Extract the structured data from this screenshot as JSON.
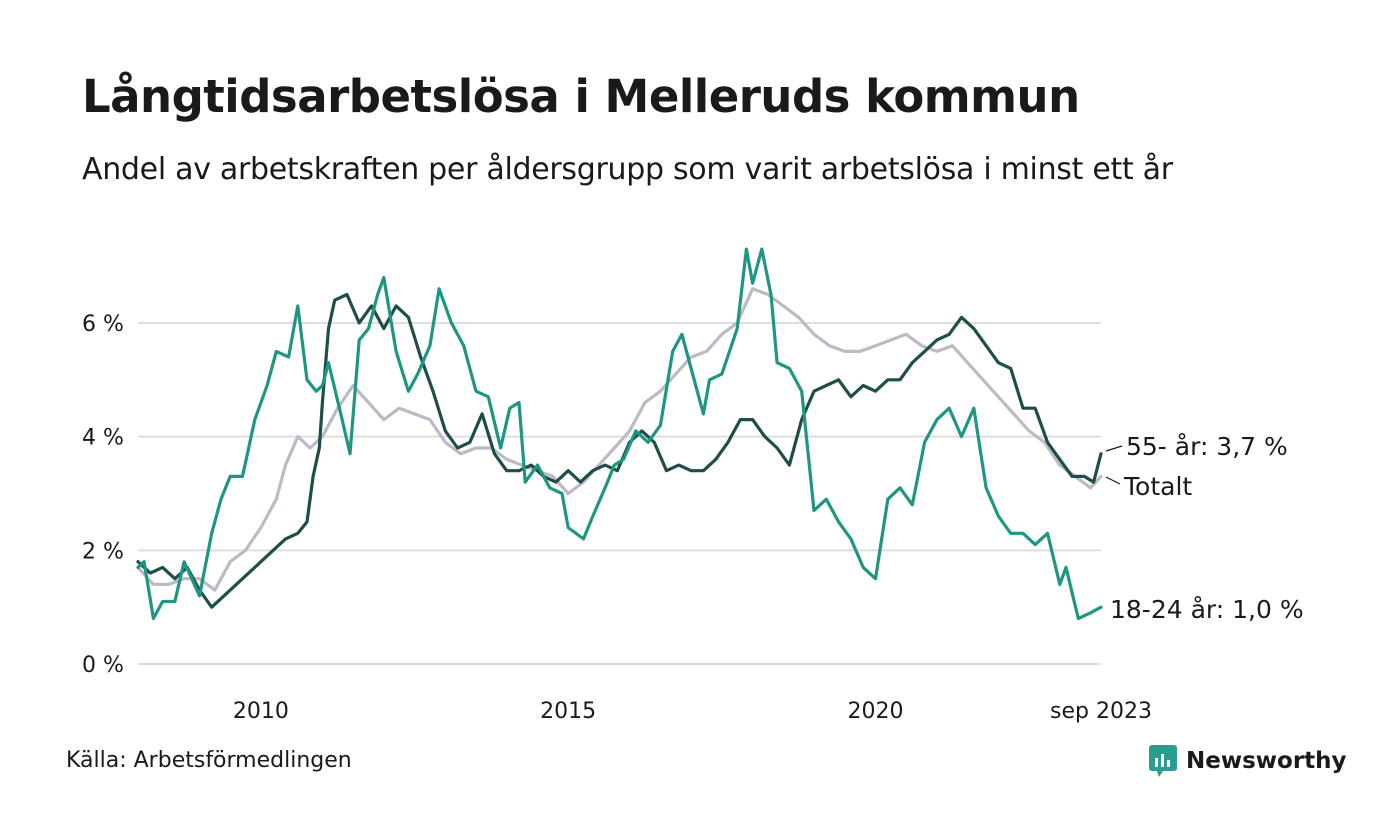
{
  "header": {
    "title": "Långtidsarbetslösa i Melleruds kommun",
    "subtitle": "Andel av arbetskraften per åldersgrupp som varit arbetslösa i minst ett år"
  },
  "footer": {
    "source": "Källa: Arbetsförmedlingen",
    "brand": "Newsworthy",
    "brand_color": "#2a9d8f"
  },
  "chart_data": {
    "type": "line",
    "title": "Långtidsarbetslösa i Melleruds kommun",
    "xlabel": "",
    "ylabel": "",
    "xlim": [
      2008.0,
      2023.67
    ],
    "ylim": [
      0,
      7.6
    ],
    "y_ticks": [
      0,
      2,
      4,
      6
    ],
    "y_tick_labels": [
      "0 %",
      "2 %",
      "4 %",
      "6 %"
    ],
    "x_ticks": [
      2010,
      2015,
      2020,
      2023.67
    ],
    "x_tick_labels": [
      "2010",
      "2015",
      "2020",
      "sep 2023"
    ],
    "grid": true,
    "series": [
      {
        "name": "Totalt",
        "label": "Totalt",
        "color": "#bdb9c6",
        "points": [
          [
            2008.0,
            1.7
          ],
          [
            2008.25,
            1.4
          ],
          [
            2008.5,
            1.4
          ],
          [
            2008.75,
            1.5
          ],
          [
            2009.0,
            1.5
          ],
          [
            2009.25,
            1.3
          ],
          [
            2009.5,
            1.8
          ],
          [
            2009.75,
            2.0
          ],
          [
            2010.0,
            2.4
          ],
          [
            2010.25,
            2.9
          ],
          [
            2010.4,
            3.5
          ],
          [
            2010.6,
            4.0
          ],
          [
            2010.8,
            3.8
          ],
          [
            2011.0,
            4.0
          ],
          [
            2011.25,
            4.5
          ],
          [
            2011.5,
            4.9
          ],
          [
            2011.75,
            4.6
          ],
          [
            2012.0,
            4.3
          ],
          [
            2012.25,
            4.5
          ],
          [
            2012.5,
            4.4
          ],
          [
            2012.75,
            4.3
          ],
          [
            2013.0,
            3.9
          ],
          [
            2013.25,
            3.7
          ],
          [
            2013.5,
            3.8
          ],
          [
            2013.75,
            3.8
          ],
          [
            2014.0,
            3.6
          ],
          [
            2014.25,
            3.5
          ],
          [
            2014.5,
            3.4
          ],
          [
            2014.75,
            3.3
          ],
          [
            2015.0,
            3.0
          ],
          [
            2015.25,
            3.2
          ],
          [
            2015.5,
            3.5
          ],
          [
            2015.75,
            3.8
          ],
          [
            2016.0,
            4.1
          ],
          [
            2016.25,
            4.6
          ],
          [
            2016.5,
            4.8
          ],
          [
            2016.75,
            5.1
          ],
          [
            2017.0,
            5.4
          ],
          [
            2017.25,
            5.5
          ],
          [
            2017.5,
            5.8
          ],
          [
            2017.75,
            6.0
          ],
          [
            2018.0,
            6.6
          ],
          [
            2018.25,
            6.5
          ],
          [
            2018.5,
            6.3
          ],
          [
            2018.75,
            6.1
          ],
          [
            2019.0,
            5.8
          ],
          [
            2019.25,
            5.6
          ],
          [
            2019.5,
            5.5
          ],
          [
            2019.75,
            5.5
          ],
          [
            2020.0,
            5.6
          ],
          [
            2020.25,
            5.7
          ],
          [
            2020.5,
            5.8
          ],
          [
            2020.75,
            5.6
          ],
          [
            2021.0,
            5.5
          ],
          [
            2021.25,
            5.6
          ],
          [
            2021.5,
            5.3
          ],
          [
            2021.75,
            5.0
          ],
          [
            2022.0,
            4.7
          ],
          [
            2022.25,
            4.4
          ],
          [
            2022.5,
            4.1
          ],
          [
            2022.75,
            3.9
          ],
          [
            2023.0,
            3.5
          ],
          [
            2023.25,
            3.3
          ],
          [
            2023.5,
            3.1
          ],
          [
            2023.67,
            3.3
          ]
        ]
      },
      {
        "name": "55- år",
        "label": "55- år: 3,7 %",
        "color": "#1f4d48",
        "points": [
          [
            2008.0,
            1.8
          ],
          [
            2008.2,
            1.6
          ],
          [
            2008.4,
            1.7
          ],
          [
            2008.6,
            1.5
          ],
          [
            2008.8,
            1.7
          ],
          [
            2009.0,
            1.3
          ],
          [
            2009.2,
            1.0
          ],
          [
            2009.4,
            1.2
          ],
          [
            2009.6,
            1.4
          ],
          [
            2009.8,
            1.6
          ],
          [
            2010.0,
            1.8
          ],
          [
            2010.2,
            2.0
          ],
          [
            2010.4,
            2.2
          ],
          [
            2010.6,
            2.3
          ],
          [
            2010.75,
            2.5
          ],
          [
            2010.85,
            3.3
          ],
          [
            2010.95,
            3.8
          ],
          [
            2011.0,
            4.6
          ],
          [
            2011.1,
            5.9
          ],
          [
            2011.2,
            6.4
          ],
          [
            2011.4,
            6.5
          ],
          [
            2011.6,
            6.0
          ],
          [
            2011.8,
            6.3
          ],
          [
            2012.0,
            5.9
          ],
          [
            2012.2,
            6.3
          ],
          [
            2012.4,
            6.1
          ],
          [
            2012.6,
            5.4
          ],
          [
            2012.8,
            4.8
          ],
          [
            2013.0,
            4.1
          ],
          [
            2013.2,
            3.8
          ],
          [
            2013.4,
            3.9
          ],
          [
            2013.6,
            4.4
          ],
          [
            2013.8,
            3.7
          ],
          [
            2014.0,
            3.4
          ],
          [
            2014.2,
            3.4
          ],
          [
            2014.4,
            3.5
          ],
          [
            2014.6,
            3.3
          ],
          [
            2014.8,
            3.2
          ],
          [
            2015.0,
            3.4
          ],
          [
            2015.2,
            3.2
          ],
          [
            2015.4,
            3.4
          ],
          [
            2015.6,
            3.5
          ],
          [
            2015.8,
            3.4
          ],
          [
            2016.0,
            3.9
          ],
          [
            2016.2,
            4.1
          ],
          [
            2016.4,
            3.9
          ],
          [
            2016.6,
            3.4
          ],
          [
            2016.8,
            3.5
          ],
          [
            2017.0,
            3.4
          ],
          [
            2017.2,
            3.4
          ],
          [
            2017.4,
            3.6
          ],
          [
            2017.6,
            3.9
          ],
          [
            2017.8,
            4.3
          ],
          [
            2018.0,
            4.3
          ],
          [
            2018.2,
            4.0
          ],
          [
            2018.4,
            3.8
          ],
          [
            2018.6,
            3.5
          ],
          [
            2018.8,
            4.3
          ],
          [
            2019.0,
            4.8
          ],
          [
            2019.2,
            4.9
          ],
          [
            2019.4,
            5.0
          ],
          [
            2019.6,
            4.7
          ],
          [
            2019.8,
            4.9
          ],
          [
            2020.0,
            4.8
          ],
          [
            2020.2,
            5.0
          ],
          [
            2020.4,
            5.0
          ],
          [
            2020.6,
            5.3
          ],
          [
            2020.8,
            5.5
          ],
          [
            2021.0,
            5.7
          ],
          [
            2021.2,
            5.8
          ],
          [
            2021.4,
            6.1
          ],
          [
            2021.6,
            5.9
          ],
          [
            2021.8,
            5.6
          ],
          [
            2022.0,
            5.3
          ],
          [
            2022.2,
            5.2
          ],
          [
            2022.4,
            4.5
          ],
          [
            2022.6,
            4.5
          ],
          [
            2022.8,
            3.9
          ],
          [
            2023.0,
            3.6
          ],
          [
            2023.2,
            3.3
          ],
          [
            2023.4,
            3.3
          ],
          [
            2023.55,
            3.2
          ],
          [
            2023.67,
            3.7
          ]
        ]
      },
      {
        "name": "18-24 år",
        "label": "18-24 år: 1,0 %",
        "color": "#1f9582",
        "points": [
          [
            2008.0,
            1.7
          ],
          [
            2008.1,
            1.8
          ],
          [
            2008.25,
            0.8
          ],
          [
            2008.4,
            1.1
          ],
          [
            2008.6,
            1.1
          ],
          [
            2008.75,
            1.8
          ],
          [
            2009.0,
            1.2
          ],
          [
            2009.2,
            2.3
          ],
          [
            2009.35,
            2.9
          ],
          [
            2009.5,
            3.3
          ],
          [
            2009.7,
            3.3
          ],
          [
            2009.9,
            4.3
          ],
          [
            2010.1,
            4.9
          ],
          [
            2010.25,
            5.5
          ],
          [
            2010.45,
            5.4
          ],
          [
            2010.6,
            6.3
          ],
          [
            2010.75,
            5.0
          ],
          [
            2010.9,
            4.8
          ],
          [
            2011.0,
            4.9
          ],
          [
            2011.1,
            5.3
          ],
          [
            2011.3,
            4.4
          ],
          [
            2011.45,
            3.7
          ],
          [
            2011.6,
            5.7
          ],
          [
            2011.75,
            5.9
          ],
          [
            2011.9,
            6.5
          ],
          [
            2012.0,
            6.8
          ],
          [
            2012.2,
            5.5
          ],
          [
            2012.4,
            4.8
          ],
          [
            2012.55,
            5.1
          ],
          [
            2012.75,
            5.6
          ],
          [
            2012.9,
            6.6
          ],
          [
            2013.1,
            6.0
          ],
          [
            2013.3,
            5.6
          ],
          [
            2013.5,
            4.8
          ],
          [
            2013.7,
            4.7
          ],
          [
            2013.9,
            3.8
          ],
          [
            2014.05,
            4.5
          ],
          [
            2014.2,
            4.6
          ],
          [
            2014.3,
            3.2
          ],
          [
            2014.5,
            3.5
          ],
          [
            2014.7,
            3.1
          ],
          [
            2014.9,
            3.0
          ],
          [
            2015.0,
            2.4
          ],
          [
            2015.25,
            2.2
          ],
          [
            2015.4,
            2.6
          ],
          [
            2015.6,
            3.1
          ],
          [
            2015.75,
            3.5
          ],
          [
            2015.9,
            3.6
          ],
          [
            2016.1,
            4.1
          ],
          [
            2016.3,
            3.9
          ],
          [
            2016.5,
            4.2
          ],
          [
            2016.7,
            5.5
          ],
          [
            2016.85,
            5.8
          ],
          [
            2017.0,
            5.2
          ],
          [
            2017.2,
            4.4
          ],
          [
            2017.3,
            5.0
          ],
          [
            2017.5,
            5.1
          ],
          [
            2017.75,
            5.9
          ],
          [
            2017.9,
            7.3
          ],
          [
            2018.0,
            6.7
          ],
          [
            2018.15,
            7.3
          ],
          [
            2018.3,
            6.5
          ],
          [
            2018.4,
            5.3
          ],
          [
            2018.6,
            5.2
          ],
          [
            2018.8,
            4.8
          ],
          [
            2019.0,
            2.7
          ],
          [
            2019.2,
            2.9
          ],
          [
            2019.4,
            2.5
          ],
          [
            2019.6,
            2.2
          ],
          [
            2019.8,
            1.7
          ],
          [
            2020.0,
            1.5
          ],
          [
            2020.2,
            2.9
          ],
          [
            2020.4,
            3.1
          ],
          [
            2020.6,
            2.8
          ],
          [
            2020.8,
            3.9
          ],
          [
            2021.0,
            4.3
          ],
          [
            2021.2,
            4.5
          ],
          [
            2021.4,
            4.0
          ],
          [
            2021.6,
            4.5
          ],
          [
            2021.8,
            3.1
          ],
          [
            2022.0,
            2.6
          ],
          [
            2022.2,
            2.3
          ],
          [
            2022.4,
            2.3
          ],
          [
            2022.6,
            2.1
          ],
          [
            2022.8,
            2.3
          ],
          [
            2023.0,
            1.4
          ],
          [
            2023.1,
            1.7
          ],
          [
            2023.3,
            0.8
          ],
          [
            2023.5,
            0.9
          ],
          [
            2023.67,
            1.0
          ]
        ]
      }
    ]
  }
}
